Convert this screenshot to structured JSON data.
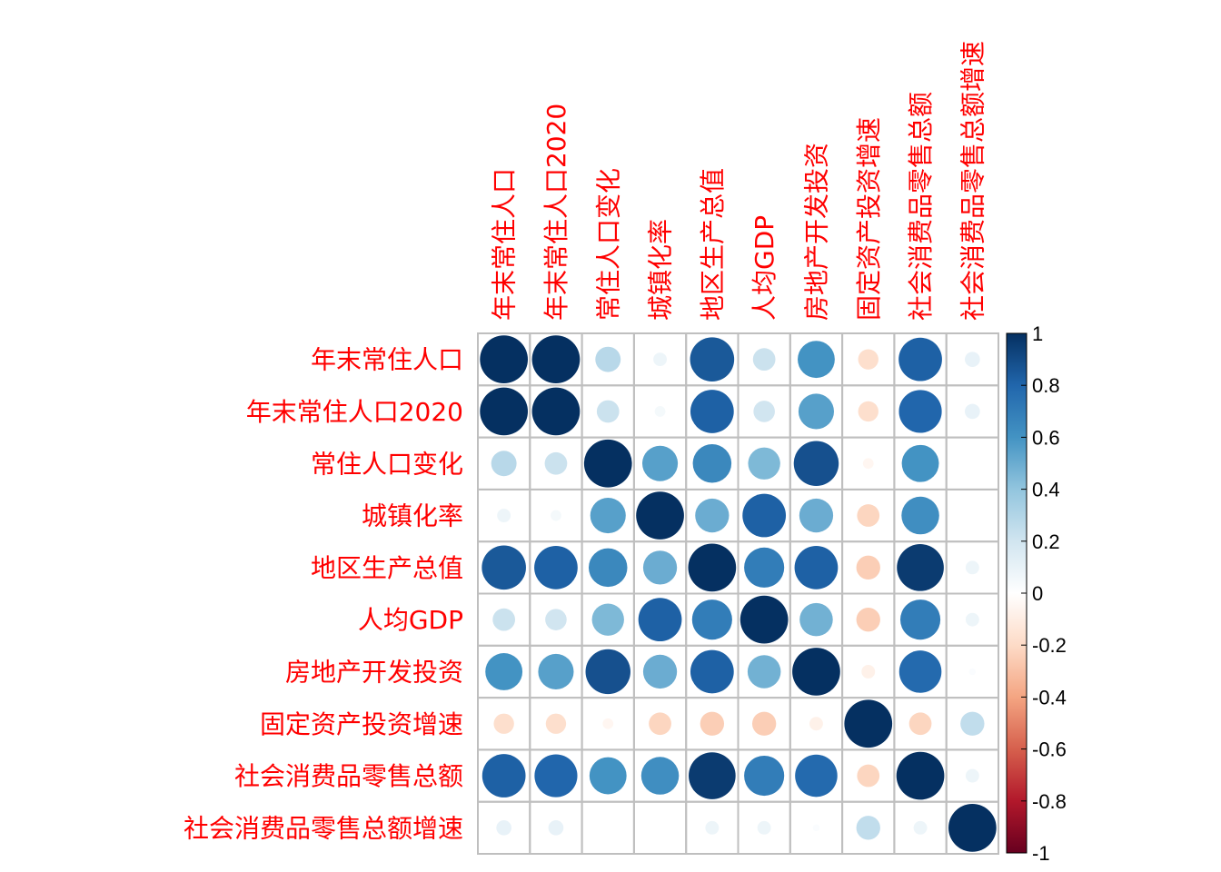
{
  "chart_data": {
    "type": "heatmap",
    "subtype": "correlation-circle-matrix",
    "variables": [
      "年末常住人口",
      "年末常住人口2020",
      "常住人口变化",
      "城镇化率",
      "地区生产总值",
      "人均GDP",
      "房地产开发投资",
      "固定资产投资增速",
      "社会消费品零售总额",
      "社会消费品零售总额增速"
    ],
    "matrix": [
      [
        1.0,
        1.0,
        0.28,
        0.08,
        0.85,
        0.22,
        0.6,
        -0.18,
        0.82,
        0.1
      ],
      [
        1.0,
        1.0,
        0.22,
        0.05,
        0.82,
        0.2,
        0.55,
        -0.18,
        0.8,
        0.1
      ],
      [
        0.28,
        0.22,
        1.0,
        0.55,
        0.65,
        0.45,
        0.88,
        -0.05,
        0.6,
        0.0
      ],
      [
        0.08,
        0.05,
        0.55,
        1.0,
        0.5,
        0.82,
        0.5,
        -0.22,
        0.62,
        0.0
      ],
      [
        0.85,
        0.82,
        0.65,
        0.5,
        1.0,
        0.7,
        0.82,
        -0.25,
        0.96,
        0.08
      ],
      [
        0.22,
        0.2,
        0.45,
        0.82,
        0.7,
        1.0,
        0.48,
        -0.25,
        0.7,
        0.08
      ],
      [
        0.6,
        0.55,
        0.88,
        0.5,
        0.82,
        0.48,
        1.0,
        -0.08,
        0.78,
        0.02
      ],
      [
        -0.18,
        -0.18,
        -0.05,
        -0.22,
        -0.25,
        -0.25,
        -0.08,
        1.0,
        -0.22,
        0.25
      ],
      [
        0.82,
        0.8,
        0.6,
        0.62,
        0.96,
        0.7,
        0.78,
        -0.22,
        1.0,
        0.08
      ],
      [
        0.1,
        0.1,
        0.0,
        0.0,
        0.08,
        0.08,
        0.02,
        0.25,
        0.08,
        1.0
      ]
    ],
    "colorbar": {
      "ticks": [
        "1",
        "0.8",
        "0.6",
        "0.4",
        "0.2",
        "0",
        "-0.2",
        "-0.4",
        "-0.6",
        "-0.8",
        "-1"
      ],
      "range": [
        -1,
        1
      ],
      "colors": [
        "#67001f",
        "#b2182b",
        "#d6604d",
        "#f4a582",
        "#fddbc7",
        "#ffffff",
        "#d1e5f0",
        "#92c5de",
        "#4393c3",
        "#2166ac",
        "#053061"
      ]
    },
    "label_color": "#ff0000",
    "grid": true
  }
}
